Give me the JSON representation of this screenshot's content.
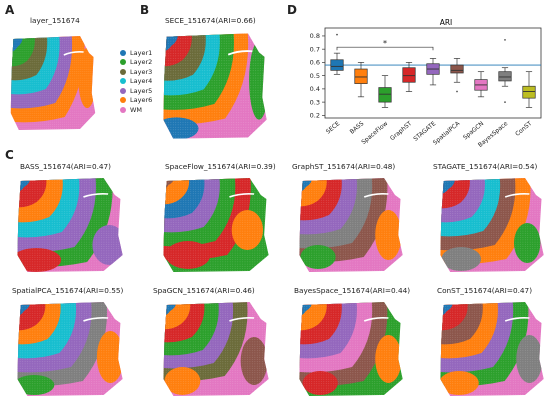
{
  "panels": {
    "A": {
      "letter": "A",
      "title": "layer_151674"
    },
    "B": {
      "letter": "B",
      "title": "SECE_151674(ARI=0.66)"
    },
    "C": {
      "letter": "C"
    },
    "D": {
      "letter": "D"
    }
  },
  "legend": [
    {
      "label": "Layer1",
      "color": "#1f77b4"
    },
    {
      "label": "Layer2",
      "color": "#2ca02c"
    },
    {
      "label": "Layer3",
      "color": "#6b6b3a"
    },
    {
      "label": "Layer4",
      "color": "#17becf"
    },
    {
      "label": "Layer5",
      "color": "#9467bd"
    },
    {
      "label": "Layer6",
      "color": "#ff7f0e"
    },
    {
      "label": "WM",
      "color": "#e377c2"
    }
  ],
  "small_maps": [
    {
      "title": "BASS_151674(ARI=0.47)"
    },
    {
      "title": "SpaceFlow_151674(ARI=0.39)"
    },
    {
      "title": "GraphST_151674(ARI=0.48)"
    },
    {
      "title": "STAGATE_151674(ARI=0.54)"
    },
    {
      "title": "SpatialPCA_151674(ARI=0.55)"
    },
    {
      "title": "SpaGCN_151674(ARI=0.46)"
    },
    {
      "title": "BayesSpace_151674(ARI=0.44)"
    },
    {
      "title": "ConST_151674(ARI=0.47)"
    }
  ],
  "chart_data": {
    "type": "box",
    "title": "ARI",
    "xlabel": "",
    "ylabel": "",
    "ylim": [
      0.18,
      0.86
    ],
    "yticks": [
      "0.2",
      "0.3",
      "0.4",
      "0.5",
      "0.6",
      "0.7",
      "0.8"
    ],
    "reference_line": 0.58,
    "significance": {
      "from": "SECE",
      "to": "STAGATE",
      "label": "*"
    },
    "categories": [
      "SECE",
      "BASS",
      "SpaceFlow",
      "GraphST",
      "STAGATE",
      "SpatialPCA",
      "SpaGCN",
      "BayesSpace",
      "ConST"
    ],
    "colors": [
      "#1f77b4",
      "#ff7f0e",
      "#2ca02c",
      "#d62728",
      "#9467bd",
      "#8c564b",
      "#e377c2",
      "#7f7f7f",
      "#bcbd22"
    ],
    "boxes": [
      {
        "min": 0.51,
        "q1": 0.54,
        "median": 0.57,
        "q3": 0.62,
        "max": 0.67,
        "outliers": [
          0.81
        ]
      },
      {
        "min": 0.34,
        "q1": 0.44,
        "median": 0.49,
        "q3": 0.55,
        "max": 0.6,
        "outliers": []
      },
      {
        "min": 0.26,
        "q1": 0.3,
        "median": 0.36,
        "q3": 0.41,
        "max": 0.5,
        "outliers": []
      },
      {
        "min": 0.38,
        "q1": 0.45,
        "median": 0.5,
        "q3": 0.56,
        "max": 0.6,
        "outliers": []
      },
      {
        "min": 0.43,
        "q1": 0.51,
        "median": 0.55,
        "q3": 0.59,
        "max": 0.63,
        "outliers": []
      },
      {
        "min": 0.45,
        "q1": 0.52,
        "median": 0.54,
        "q3": 0.58,
        "max": 0.63,
        "outliers": [
          0.38
        ]
      },
      {
        "min": 0.34,
        "q1": 0.39,
        "median": 0.43,
        "q3": 0.47,
        "max": 0.53,
        "outliers": []
      },
      {
        "min": 0.42,
        "q1": 0.46,
        "median": 0.49,
        "q3": 0.53,
        "max": 0.56,
        "outliers": [
          0.77,
          0.3
        ]
      },
      {
        "min": 0.26,
        "q1": 0.33,
        "median": 0.38,
        "q3": 0.42,
        "max": 0.53,
        "outliers": []
      }
    ]
  }
}
